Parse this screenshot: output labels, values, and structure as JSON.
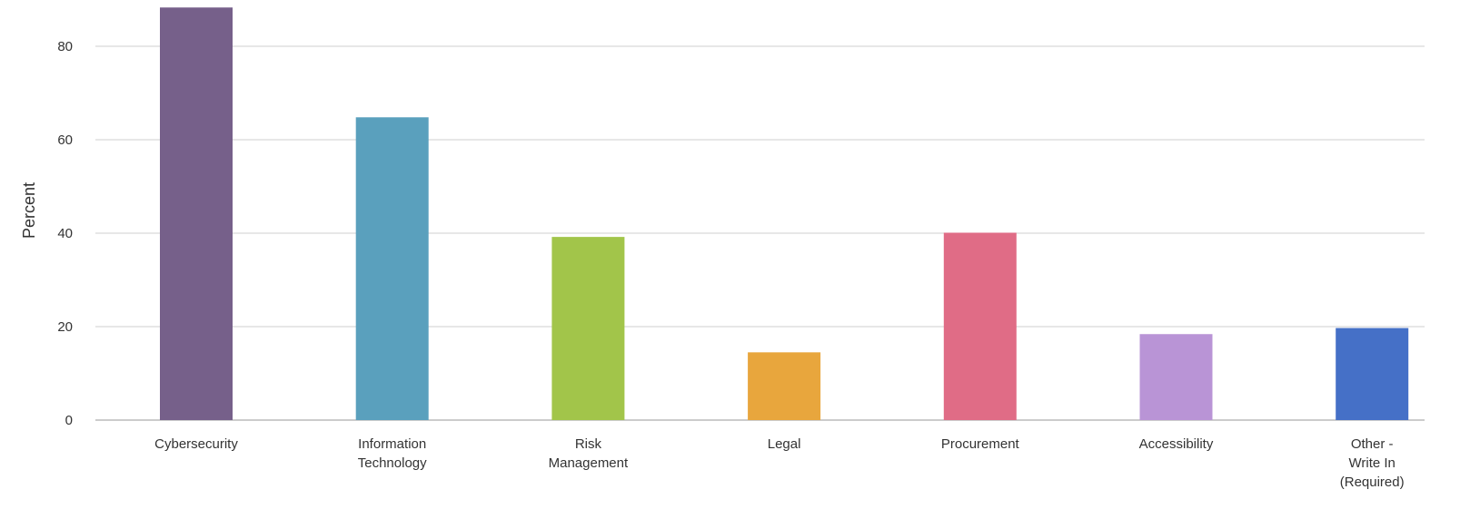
{
  "chart_data": {
    "type": "bar",
    "title": "",
    "xlabel": "",
    "ylabel": "Percent",
    "ylim": [
      0,
      88.5
    ],
    "yticks": [
      0,
      20,
      40,
      60,
      80
    ],
    "grid": true,
    "legend": "none",
    "categories": [
      "Cybersecurity",
      "Information Technology",
      "Risk Management",
      "Legal",
      "Procurement",
      "Accessibility",
      "Other - Write In (Required)"
    ],
    "category_label_lines": [
      [
        "Cybersecurity"
      ],
      [
        "Information",
        "Technology"
      ],
      [
        "Risk",
        "Management"
      ],
      [
        "Legal"
      ],
      [
        "Procurement"
      ],
      [
        "Accessibility"
      ],
      [
        "Other -",
        "Write In",
        "(Required)"
      ]
    ],
    "series": [
      {
        "values": [
          88.3,
          64.8,
          39.2,
          14.5,
          40.1,
          18.4,
          19.7
        ]
      }
    ],
    "colors": [
      "#76608a",
      "#5aa0bd",
      "#a2c54a",
      "#e8a63d",
      "#e06c86",
      "#b994d6",
      "#4570c7"
    ]
  }
}
